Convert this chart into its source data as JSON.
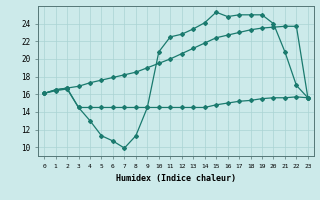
{
  "xlabel": "Humidex (Indice chaleur)",
  "background_color": "#cceaea",
  "line_color": "#1a7a6e",
  "grid_color": "#aad4d4",
  "xlim": [
    -0.5,
    23.5
  ],
  "ylim": [
    9.0,
    26.0
  ],
  "xticks": [
    0,
    1,
    2,
    3,
    4,
    5,
    6,
    7,
    8,
    9,
    10,
    11,
    12,
    13,
    14,
    15,
    16,
    17,
    18,
    19,
    20,
    21,
    22,
    23
  ],
  "yticks": [
    10,
    12,
    14,
    16,
    18,
    20,
    22,
    24
  ],
  "series1_x": [
    0,
    1,
    2,
    3,
    4,
    5,
    6,
    7,
    8,
    9,
    10,
    11,
    12,
    13,
    14,
    15,
    16,
    17,
    18,
    19,
    20,
    21,
    22,
    23
  ],
  "series1_y": [
    16.1,
    16.5,
    16.7,
    16.9,
    17.3,
    17.6,
    17.9,
    18.2,
    18.5,
    19.0,
    19.5,
    20.0,
    20.6,
    21.2,
    21.8,
    22.4,
    22.7,
    23.0,
    23.3,
    23.5,
    23.6,
    23.7,
    23.7,
    15.6
  ],
  "series2_x": [
    0,
    1,
    2,
    3,
    4,
    5,
    6,
    7,
    8,
    9,
    10,
    11,
    12,
    13,
    14,
    15,
    16,
    17,
    18,
    19,
    20,
    21,
    22,
    23
  ],
  "series2_y": [
    16.1,
    16.5,
    16.7,
    14.5,
    13.0,
    11.3,
    10.7,
    9.9,
    11.3,
    14.5,
    20.8,
    22.5,
    22.8,
    23.4,
    24.1,
    25.3,
    24.8,
    25.0,
    25.0,
    25.0,
    24.0,
    20.8,
    17.0,
    15.6
  ],
  "series3_x": [
    0,
    1,
    2,
    3,
    4,
    5,
    6,
    7,
    8,
    9,
    10,
    11,
    12,
    13,
    14,
    15,
    16,
    17,
    18,
    19,
    20,
    21,
    22,
    23
  ],
  "series3_y": [
    16.1,
    16.4,
    16.6,
    14.5,
    14.5,
    14.5,
    14.5,
    14.5,
    14.5,
    14.5,
    14.5,
    14.5,
    14.5,
    14.5,
    14.5,
    14.8,
    15.0,
    15.2,
    15.3,
    15.5,
    15.6,
    15.6,
    15.7,
    15.6
  ]
}
